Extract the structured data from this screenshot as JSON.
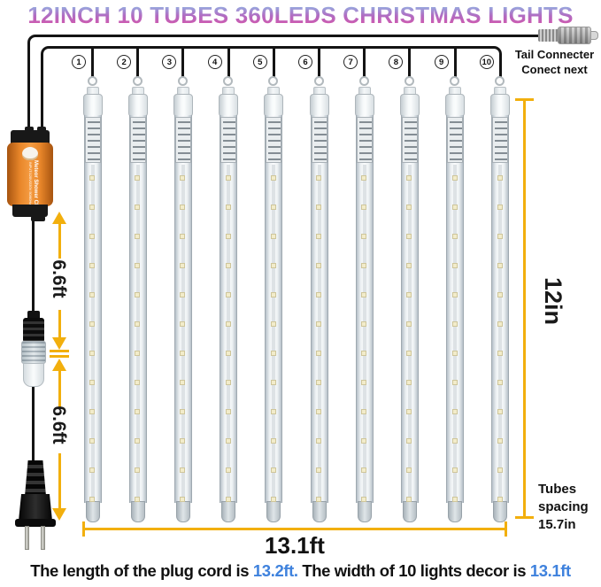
{
  "title": "12INCH 10 TUBES 360LEDS CHRISTMAS LIGHTS",
  "tail_connector": {
    "line1": "Tail Connecter",
    "line2": "Conect next"
  },
  "tubes": {
    "count": 10,
    "numbers": [
      "1",
      "2",
      "3",
      "4",
      "5",
      "6",
      "7",
      "8",
      "9",
      "10"
    ],
    "leds_per_tube": 12
  },
  "adapter": {
    "line1": "Meteor Shower CE",
    "line2": "INPUT:120V/220V 50/60Hz"
  },
  "measurements": {
    "cord_segment_1": "6.6ft",
    "cord_segment_2": "6.6ft",
    "tube_length": "12in",
    "total_width": "13.1ft",
    "spacing_line1": "Tubes",
    "spacing_line2": "spacing",
    "spacing_line3": "15.7in"
  },
  "footer": {
    "seg1": "The length of the plug cord is ",
    "seg2": "13.2ft.",
    "seg3": " The width of 10 lights decor is ",
    "seg4": "13.1ft"
  },
  "colors": {
    "measure_accent": "#F2AF0D",
    "footer_blue": "#3F82DD",
    "title_gradient_top": "#8CC6EC",
    "title_gradient_bottom": "#E04FA4"
  }
}
